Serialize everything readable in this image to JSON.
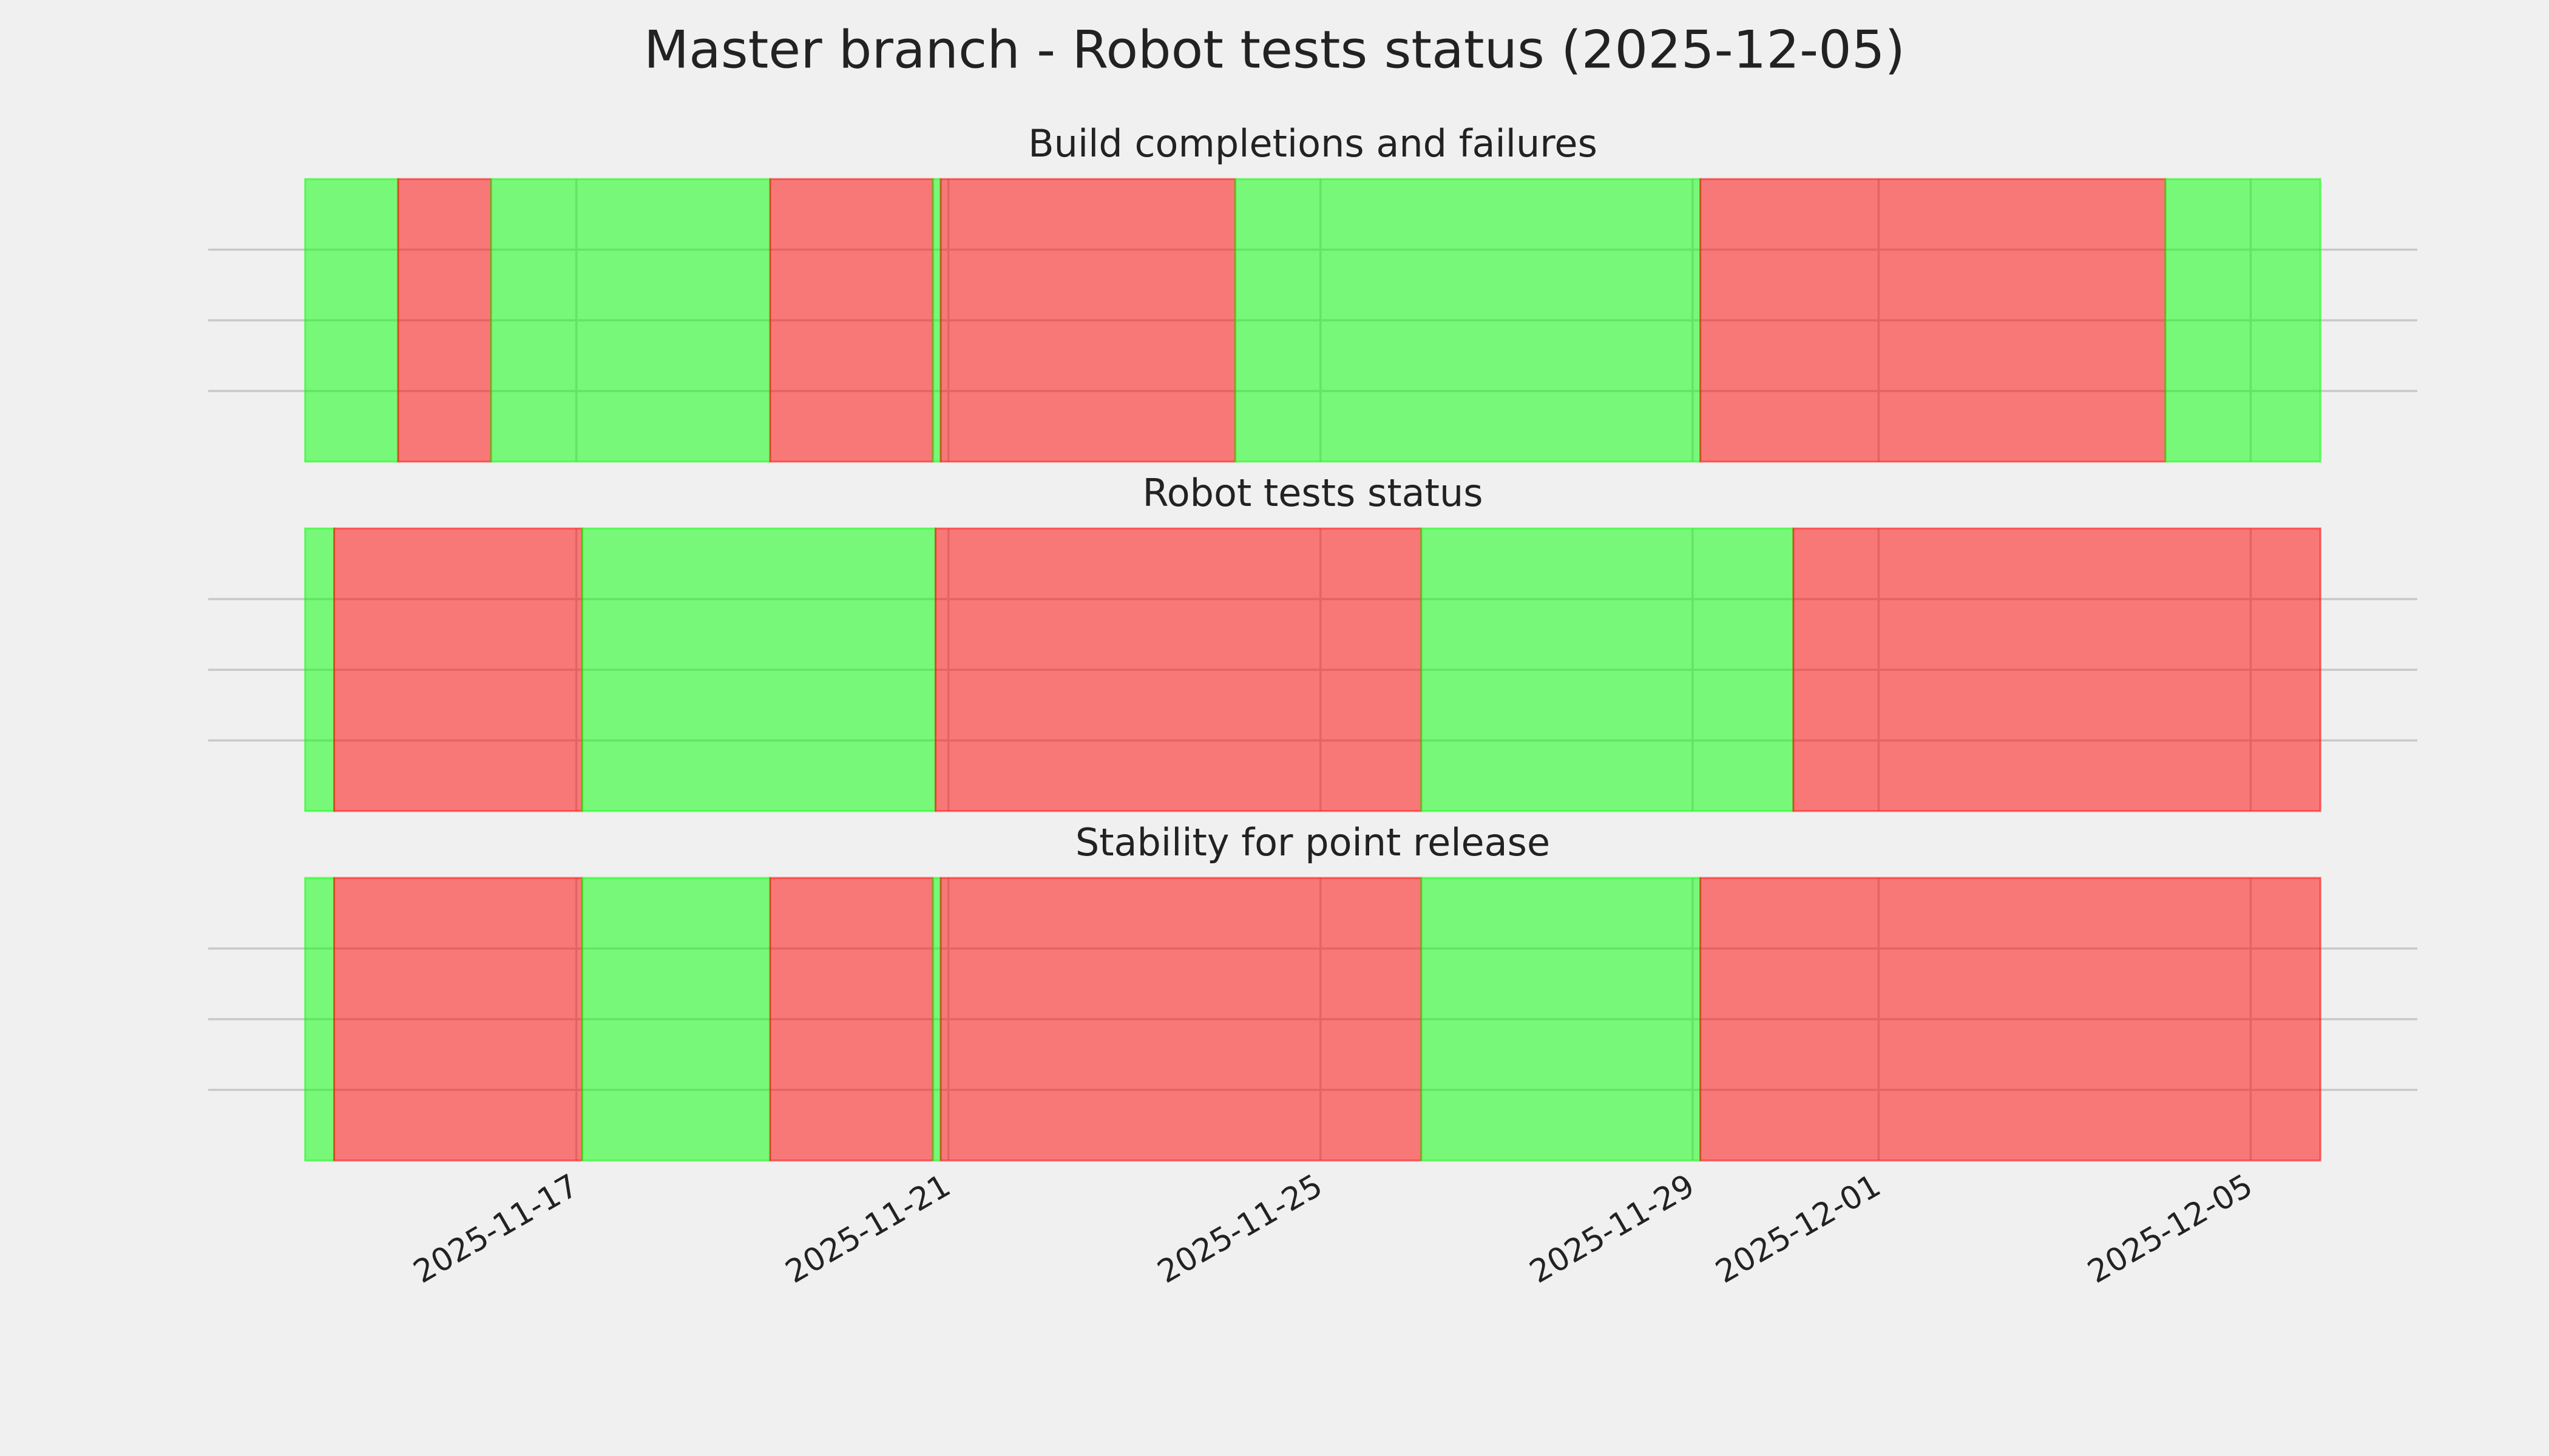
{
  "chart_data": {
    "type": "timeline",
    "title": "Master branch - Robot tests status (2025-12-05)",
    "xlim": [
      "2025-11-13T01:00",
      "2025-12-06T19:00"
    ],
    "xticks": [
      "2025-11-17",
      "2025-11-21",
      "2025-11-25",
      "2025-11-29",
      "2025-12-01",
      "2025-12-05"
    ],
    "ylim": [
      0,
      1
    ],
    "yticks": [
      0.25,
      0.5,
      0.75
    ],
    "grid": true,
    "opacity": 0.5,
    "panels": [
      {
        "title": "Build completions and failures",
        "segments": [
          {
            "start": "2025-11-14T02:00",
            "end": "2025-11-15T02:00",
            "color": "#00ff00"
          },
          {
            "start": "2025-11-15T02:00",
            "end": "2025-11-16T02:00",
            "color": "#ff0000"
          },
          {
            "start": "2025-11-16T02:00",
            "end": "2025-11-19T02:00",
            "color": "#00ff00"
          },
          {
            "start": "2025-11-19T02:00",
            "end": "2025-11-20T20:00",
            "color": "#ff0000"
          },
          {
            "start": "2025-11-20T20:00",
            "end": "2025-11-20T22:00",
            "color": "#00ff00"
          },
          {
            "start": "2025-11-20T22:00",
            "end": "2025-11-24T02:00",
            "color": "#ff0000"
          },
          {
            "start": "2025-11-24T02:00",
            "end": "2025-11-29T02:00",
            "color": "#00ff00"
          },
          {
            "start": "2025-11-29T02:00",
            "end": "2025-12-04T02:00",
            "color": "#ff0000"
          },
          {
            "start": "2025-12-04T02:00",
            "end": "2025-12-05T18:00",
            "color": "#00ff00"
          }
        ]
      },
      {
        "title": "Robot tests status",
        "segments": [
          {
            "start": "2025-11-14T02:00",
            "end": "2025-11-14T09:30",
            "color": "#00ff00"
          },
          {
            "start": "2025-11-14T09:30",
            "end": "2025-11-17T01:30",
            "color": "#ff0000"
          },
          {
            "start": "2025-11-17T01:30",
            "end": "2025-11-20T20:40",
            "color": "#00ff00"
          },
          {
            "start": "2025-11-20T20:40",
            "end": "2025-11-26T02:00",
            "color": "#ff0000"
          },
          {
            "start": "2025-11-26T02:00",
            "end": "2025-11-30T02:00",
            "color": "#00ff00"
          },
          {
            "start": "2025-11-30T02:00",
            "end": "2025-12-05T18:00",
            "color": "#ff0000"
          }
        ]
      },
      {
        "title": "Stability for point release",
        "segments": [
          {
            "start": "2025-11-14T02:00",
            "end": "2025-11-14T09:30",
            "color": "#00ff00"
          },
          {
            "start": "2025-11-14T09:30",
            "end": "2025-11-17T01:30",
            "color": "#ff0000"
          },
          {
            "start": "2025-11-17T01:30",
            "end": "2025-11-19T02:00",
            "color": "#00ff00"
          },
          {
            "start": "2025-11-19T02:00",
            "end": "2025-11-20T20:00",
            "color": "#ff0000"
          },
          {
            "start": "2025-11-20T20:00",
            "end": "2025-11-20T22:00",
            "color": "#00ff00"
          },
          {
            "start": "2025-11-20T22:00",
            "end": "2025-11-26T02:00",
            "color": "#ff0000"
          },
          {
            "start": "2025-11-26T02:00",
            "end": "2025-11-29T02:00",
            "color": "#00ff00"
          },
          {
            "start": "2025-11-29T02:00",
            "end": "2025-12-05T18:00",
            "color": "#ff0000"
          }
        ]
      }
    ]
  }
}
